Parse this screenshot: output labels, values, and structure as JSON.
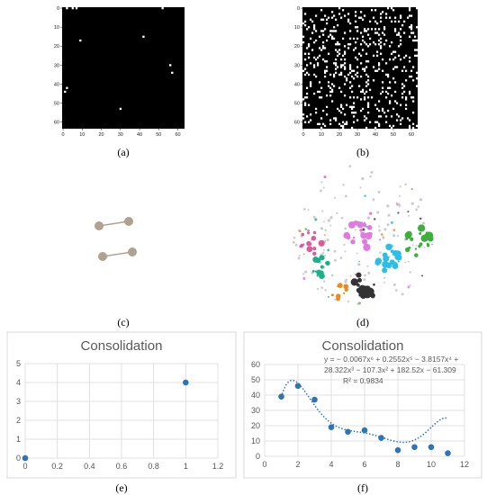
{
  "panels": {
    "a": {
      "label": "(a)",
      "chart_data": {
        "type": "heatmap",
        "grid_size": 64,
        "x_ticks": [
          "0",
          "10",
          "20",
          "30",
          "40",
          "50",
          "60"
        ],
        "y_ticks": [
          "0",
          "10",
          "20",
          "30",
          "40",
          "50",
          "60"
        ],
        "background_color": "#000000",
        "cell_color": "#ffffff",
        "cells": [
          [
            2,
            0
          ],
          [
            5,
            0
          ],
          [
            7,
            0
          ],
          [
            52,
            0
          ],
          [
            9,
            17
          ],
          [
            42,
            15
          ],
          [
            56,
            30
          ],
          [
            57,
            34
          ],
          [
            1,
            44
          ],
          [
            2,
            42
          ],
          [
            30,
            53
          ]
        ]
      }
    },
    "b": {
      "label": "(b)",
      "chart_data": {
        "type": "heatmap",
        "grid_size": 64,
        "x_ticks": [
          "0",
          "10",
          "20",
          "30",
          "40",
          "50",
          "60"
        ],
        "y_ticks": [
          "0",
          "10",
          "20",
          "30",
          "40",
          "50",
          "60"
        ],
        "background_color": "#000000",
        "cell_color": "#ffffff",
        "random_density": 0.12
      }
    },
    "c": {
      "label": "(c)",
      "node_color": "#b0a290",
      "edge_color": "#b0a290",
      "nodes": 4,
      "edges": 2
    },
    "d": {
      "label": "(d)",
      "cluster_colors": [
        "#3bb03b",
        "#2bbfe8",
        "#333333",
        "#f08a20",
        "#1ab08a",
        "#e05a9a",
        "#e07ae0",
        "#c0c0c0"
      ]
    },
    "e": {
      "label": "(e)",
      "chart_data": {
        "type": "scatter",
        "title": "Consolidation",
        "x": [
          0,
          1
        ],
        "y": [
          0,
          4
        ],
        "xlim": [
          0,
          1.2
        ],
        "ylim": [
          0,
          5
        ],
        "x_ticks": [
          "0",
          "0.2",
          "0.4",
          "0.6",
          "0.8",
          "1",
          "1.2"
        ],
        "y_ticks": [
          "0",
          "1",
          "2",
          "3",
          "4",
          "5"
        ],
        "grid": true,
        "marker_color": "#2e75b6"
      }
    },
    "f": {
      "label": "(f)",
      "chart_data": {
        "type": "scatter",
        "title": "Consolidation",
        "x": [
          1,
          2,
          3,
          4,
          5,
          6,
          7,
          8,
          9,
          10,
          11
        ],
        "y": [
          39,
          46,
          37,
          19,
          16,
          17,
          12,
          4,
          6,
          6,
          2
        ],
        "xlim": [
          0,
          12
        ],
        "ylim": [
          0,
          60
        ],
        "x_ticks": [
          "0",
          "2",
          "4",
          "6",
          "8",
          "10",
          "12"
        ],
        "y_ticks": [
          "0",
          "10",
          "20",
          "30",
          "40",
          "50",
          "60"
        ],
        "grid": true,
        "marker_color": "#2e75b6",
        "trendline": {
          "type": "polynomial",
          "order": 6,
          "coefficients": [
            -0.0067,
            0.2552,
            -3.8157,
            28.322,
            -107.3,
            182.52,
            -61.309
          ],
          "style": "dotted",
          "color": "#2e75b6",
          "equation_line1": "y = − 0.0067x⁶ + 0.2552x⁵ − 3.8157x⁴ +",
          "equation_line2": "28.322x³ − 107.3x² + 182.52x − 61.309",
          "r_squared": "R² = 0.9834"
        }
      }
    }
  }
}
